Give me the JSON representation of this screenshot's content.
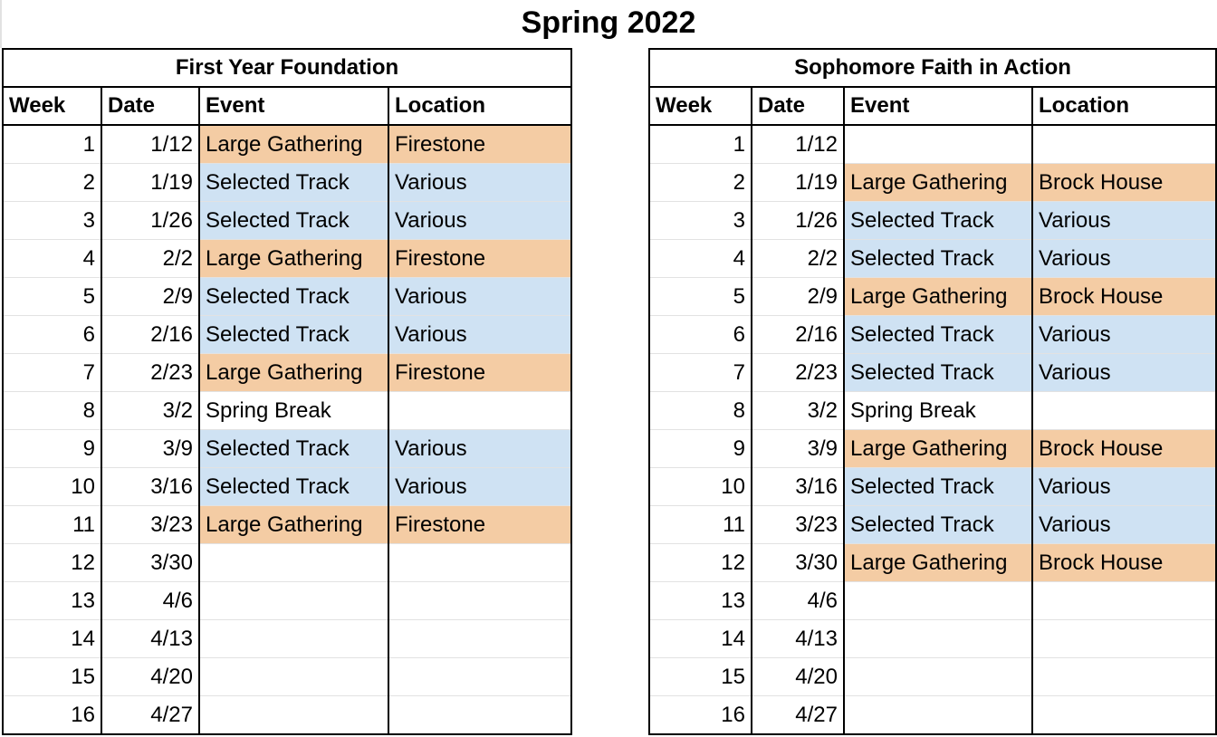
{
  "title": "Spring 2022",
  "colors": {
    "large_gathering": "#f4cca4",
    "selected_track": "#cfe2f3",
    "border": "#000000",
    "gridline": "#e2e2e2"
  },
  "columns": [
    "Week",
    "Date",
    "Event",
    "Location"
  ],
  "tables": [
    {
      "heading": "First Year Foundation",
      "rows": [
        {
          "week": "1",
          "date": "1/12",
          "event": "Large Gathering",
          "location": "Firestone"
        },
        {
          "week": "2",
          "date": "1/19",
          "event": "Selected Track",
          "location": "Various"
        },
        {
          "week": "3",
          "date": "1/26",
          "event": "Selected Track",
          "location": "Various"
        },
        {
          "week": "4",
          "date": "2/2",
          "event": "Large Gathering",
          "location": "Firestone"
        },
        {
          "week": "5",
          "date": "2/9",
          "event": "Selected Track",
          "location": "Various"
        },
        {
          "week": "6",
          "date": "2/16",
          "event": "Selected Track",
          "location": "Various"
        },
        {
          "week": "7",
          "date": "2/23",
          "event": "Large Gathering",
          "location": "Firestone"
        },
        {
          "week": "8",
          "date": "3/2",
          "event": "Spring Break",
          "location": ""
        },
        {
          "week": "9",
          "date": "3/9",
          "event": "Selected Track",
          "location": "Various"
        },
        {
          "week": "10",
          "date": "3/16",
          "event": "Selected Track",
          "location": "Various"
        },
        {
          "week": "11",
          "date": "3/23",
          "event": "Large Gathering",
          "location": "Firestone"
        },
        {
          "week": "12",
          "date": "3/30",
          "event": "",
          "location": ""
        },
        {
          "week": "13",
          "date": "4/6",
          "event": "",
          "location": ""
        },
        {
          "week": "14",
          "date": "4/13",
          "event": "",
          "location": ""
        },
        {
          "week": "15",
          "date": "4/20",
          "event": "",
          "location": ""
        },
        {
          "week": "16",
          "date": "4/27",
          "event": "",
          "location": ""
        }
      ]
    },
    {
      "heading": "Sophomore Faith in Action",
      "rows": [
        {
          "week": "1",
          "date": "1/12",
          "event": "",
          "location": ""
        },
        {
          "week": "2",
          "date": "1/19",
          "event": "Large Gathering",
          "location": "Brock House"
        },
        {
          "week": "3",
          "date": "1/26",
          "event": "Selected Track",
          "location": "Various"
        },
        {
          "week": "4",
          "date": "2/2",
          "event": "Selected Track",
          "location": "Various"
        },
        {
          "week": "5",
          "date": "2/9",
          "event": "Large Gathering",
          "location": "Brock House"
        },
        {
          "week": "6",
          "date": "2/16",
          "event": "Selected Track",
          "location": "Various"
        },
        {
          "week": "7",
          "date": "2/23",
          "event": "Selected Track",
          "location": "Various"
        },
        {
          "week": "8",
          "date": "3/2",
          "event": "Spring Break",
          "location": ""
        },
        {
          "week": "9",
          "date": "3/9",
          "event": "Large Gathering",
          "location": "Brock House"
        },
        {
          "week": "10",
          "date": "3/16",
          "event": "Selected Track",
          "location": "Various"
        },
        {
          "week": "11",
          "date": "3/23",
          "event": "Selected Track",
          "location": "Various"
        },
        {
          "week": "12",
          "date": "3/30",
          "event": "Large Gathering",
          "location": "Brock House"
        },
        {
          "week": "13",
          "date": "4/6",
          "event": "",
          "location": ""
        },
        {
          "week": "14",
          "date": "4/13",
          "event": "",
          "location": ""
        },
        {
          "week": "15",
          "date": "4/20",
          "event": "",
          "location": ""
        },
        {
          "week": "16",
          "date": "4/27",
          "event": "",
          "location": ""
        }
      ]
    }
  ]
}
